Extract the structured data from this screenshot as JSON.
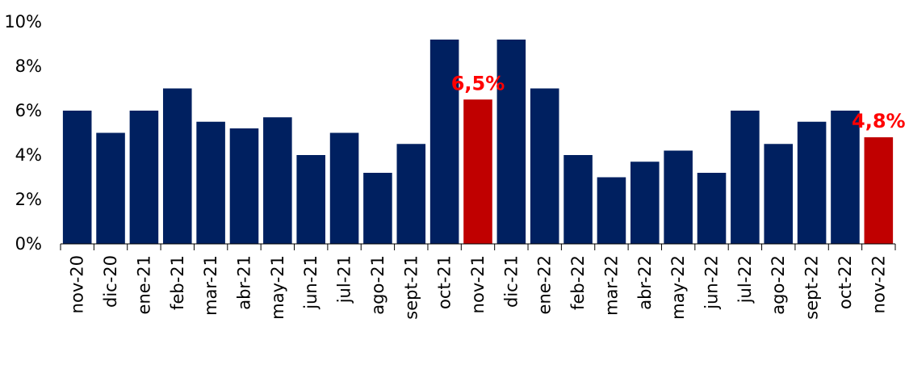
{
  "chart_data": {
    "type": "bar",
    "title": "",
    "xlabel": "",
    "ylabel": "",
    "ylim": [
      0,
      10
    ],
    "y_tick_values": [
      0,
      2,
      4,
      6,
      8,
      10
    ],
    "y_tick_labels": [
      "0%",
      "2%",
      "4%",
      "6%",
      "8%",
      "10%"
    ],
    "grid": false,
    "legend": "none",
    "categories": [
      "nov-20",
      "dic-20",
      "ene-21",
      "feb-21",
      "mar-21",
      "abr-21",
      "may-21",
      "jun-21",
      "jul-21",
      "ago-21",
      "sept-21",
      "oct-21",
      "nov-21",
      "dic-21",
      "ene-22",
      "feb-22",
      "mar-22",
      "abr-22",
      "may-22",
      "jun-22",
      "jul-22",
      "ago-22",
      "sept-22",
      "oct-22",
      "nov-22"
    ],
    "values": [
      6.0,
      5.0,
      6.0,
      7.0,
      5.5,
      5.2,
      5.7,
      4.0,
      5.0,
      3.2,
      4.5,
      9.2,
      6.5,
      9.2,
      7.0,
      4.0,
      3.0,
      3.7,
      4.2,
      3.2,
      6.0,
      4.5,
      5.5,
      6.0,
      4.8
    ],
    "highlighted_categories": [
      "nov-21",
      "nov-22"
    ],
    "data_labels": [
      {
        "category": "nov-21",
        "text": "6,5%"
      },
      {
        "category": "nov-22",
        "text": "4,8%"
      }
    ],
    "colors": {
      "bar": "#002060",
      "highlight": "#C00000",
      "data_label": "#FF0000",
      "axis": "#000000"
    }
  }
}
